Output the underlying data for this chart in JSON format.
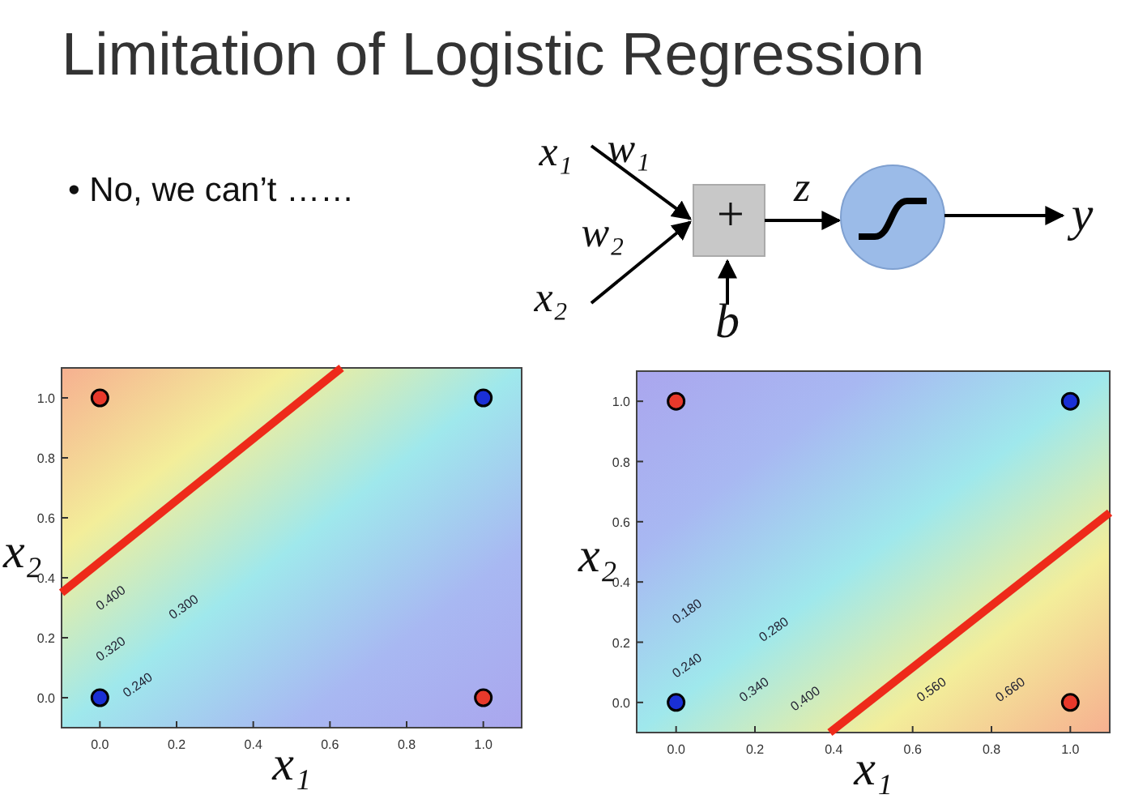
{
  "chart_data": [
    {
      "type": "other",
      "title": "Limitation of Logistic Regression",
      "annotations": [
        "• No, we can’t ……",
        "x₁",
        "w₁",
        "w₂",
        "x₂",
        "+",
        "z",
        "b",
        "y"
      ]
    },
    {
      "type": "scatter",
      "xlabel": "x₁",
      "ylabel": "x₂",
      "xlim": [
        -0.1,
        1.1
      ],
      "ylim": [
        -0.1,
        1.1
      ],
      "xticks": [
        {
          "value": 0,
          "label": "0.0"
        },
        {
          "value": 0.2,
          "label": "0.2"
        },
        {
          "value": 0.4,
          "label": "0.4"
        },
        {
          "value": 0.6,
          "label": "0.6"
        },
        {
          "value": 0.8,
          "label": "0.8"
        },
        {
          "value": 1,
          "label": "1.0"
        }
      ],
      "yticks": [
        {
          "value": 0,
          "label": "0.0"
        },
        {
          "value": 0.2,
          "label": "0.2"
        },
        {
          "value": 0.4,
          "label": "0.4"
        },
        {
          "value": 0.6,
          "label": "0.6"
        },
        {
          "value": 0.8,
          "label": "0.8"
        },
        {
          "value": 1,
          "label": "1.0"
        }
      ],
      "series": [
        {
          "type": "scatter",
          "color": "#e8392b",
          "marker": "circle",
          "x": [
            0,
            1
          ],
          "values": [
            1,
            0
          ]
        },
        {
          "type": "scatter",
          "color": "#1a2fd6",
          "marker": "circle",
          "x": [
            0,
            1
          ],
          "values": [
            0,
            1
          ]
        },
        {
          "type": "line",
          "color": "#ee2a1a",
          "x": [
            -0.1,
            0.63
          ],
          "values": [
            0.35,
            1.1
          ]
        }
      ],
      "annotations": [
        "0.400",
        "0.300",
        "0.320",
        "0.240"
      ]
    },
    {
      "type": "scatter",
      "xlabel": "x₁",
      "ylabel": "x₂",
      "xlim": [
        -0.1,
        1.1
      ],
      "ylim": [
        -0.1,
        1.1
      ],
      "xticks": [
        {
          "value": 0,
          "label": "0.0"
        },
        {
          "value": 0.2,
          "label": "0.2"
        },
        {
          "value": 0.4,
          "label": "0.4"
        },
        {
          "value": 0.6,
          "label": "0.6"
        },
        {
          "value": 0.8,
          "label": "0.8"
        },
        {
          "value": 1,
          "label": "1.0"
        }
      ],
      "yticks": [
        {
          "value": 0,
          "label": "0.0"
        },
        {
          "value": 0.2,
          "label": "0.2"
        },
        {
          "value": 0.4,
          "label": "0.4"
        },
        {
          "value": 0.6,
          "label": "0.6"
        },
        {
          "value": 0.8,
          "label": "0.8"
        },
        {
          "value": 1,
          "label": "1.0"
        }
      ],
      "series": [
        {
          "type": "scatter",
          "color": "#e8392b",
          "marker": "circle",
          "x": [
            0,
            1
          ],
          "values": [
            1,
            0
          ]
        },
        {
          "type": "scatter",
          "color": "#1a2fd6",
          "marker": "circle",
          "x": [
            0,
            1
          ],
          "values": [
            0,
            1
          ]
        },
        {
          "type": "line",
          "color": "#ee2a1a",
          "x": [
            0.39,
            1.1
          ],
          "values": [
            -0.1,
            0.63
          ]
        }
      ],
      "annotations": [
        "0.180",
        "0.280",
        "0.240",
        "0.340",
        "0.400",
        "0.560",
        "0.660"
      ]
    }
  ]
}
